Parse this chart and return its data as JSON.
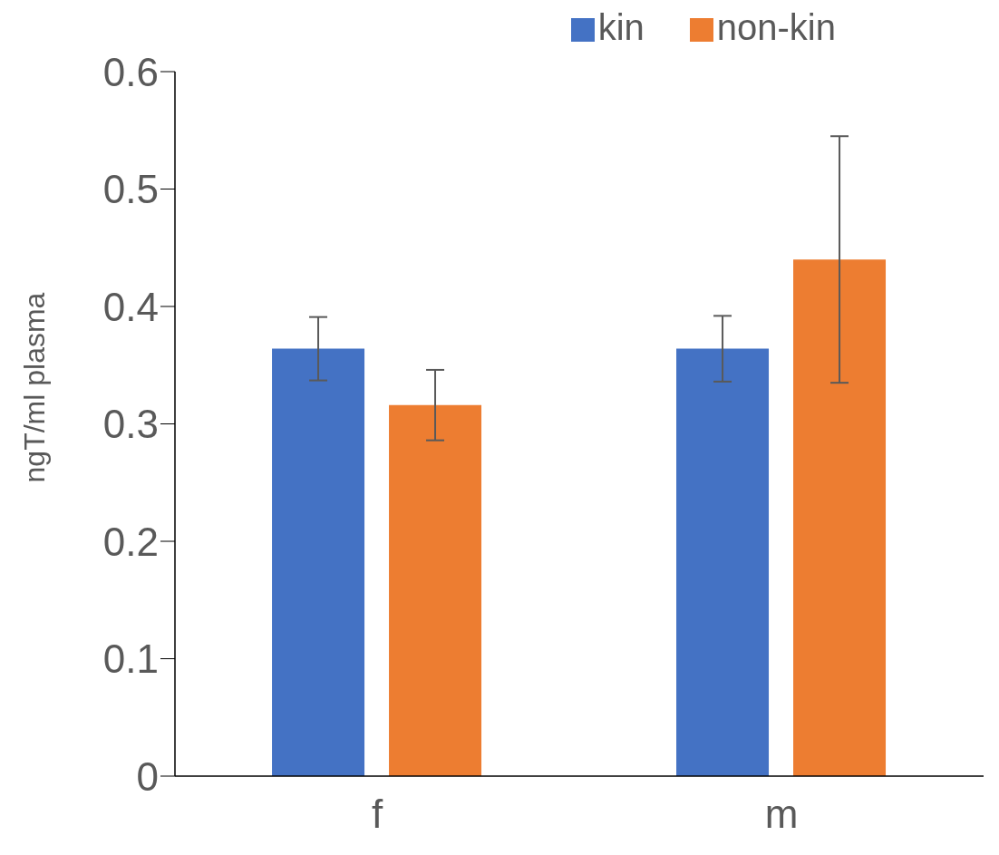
{
  "chart_data": {
    "type": "bar",
    "ylabel": "ngT/ml plasma",
    "categories": [
      "f",
      "m"
    ],
    "series": [
      {
        "name": "kin",
        "color": "#4472c4",
        "values": [
          0.364,
          0.364
        ],
        "errors": [
          0.027,
          0.028
        ]
      },
      {
        "name": "non-kin",
        "color": "#ed7d31",
        "values": [
          0.316,
          0.44
        ],
        "errors": [
          0.03,
          0.105
        ]
      }
    ],
    "ylim": [
      0,
      0.6
    ],
    "yticks": [
      0,
      0.1,
      0.2,
      0.3,
      0.4,
      0.5,
      0.6
    ],
    "grid": false,
    "legend": "top right"
  }
}
